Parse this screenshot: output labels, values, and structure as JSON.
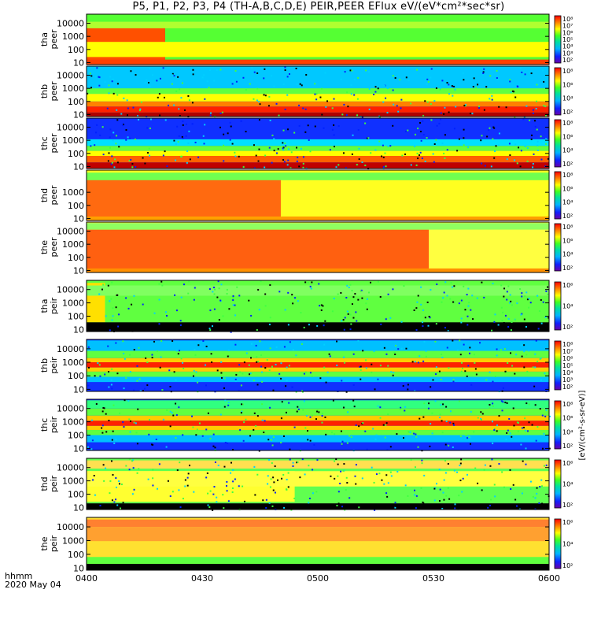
{
  "title": "P5, P1, P2, P3, P4 (TH-A,B,C,D,E) PEIR,PEER EFlux eV/(eV*cm²*sec*sr)",
  "time_axis": {
    "ticks": [
      "0400",
      "0430",
      "0500",
      "0530",
      "0600"
    ],
    "label_line1": "hhmm",
    "label_line2": "2020 May 04"
  },
  "colorbar_label": "eV/(cm²-s-sr-eV)",
  "chart_data": [
    {
      "type": "heatmap",
      "probe": "tha",
      "species": "peer",
      "ylabels": [
        "tha",
        "peer"
      ],
      "y_scale": "log",
      "y_ticks": [
        "10000",
        "1000",
        "100",
        "10"
      ],
      "colorbar_ticks": [
        "10⁸",
        "10⁷",
        "10⁶",
        "10⁵",
        "10⁴",
        "10³",
        "10²"
      ]
    },
    {
      "type": "heatmap",
      "probe": "thb",
      "species": "peer",
      "ylabels": [
        "thb",
        "peer"
      ],
      "y_scale": "log",
      "y_ticks": [
        "10000",
        "1000",
        "100",
        "10"
      ],
      "colorbar_ticks": [
        "10⁸",
        "10⁶",
        "10⁴",
        "10²"
      ]
    },
    {
      "type": "heatmap",
      "probe": "thc",
      "species": "peer",
      "ylabels": [
        "thc",
        "peer"
      ],
      "y_scale": "log",
      "y_ticks": [
        "10000",
        "1000",
        "100",
        "10"
      ],
      "colorbar_ticks": [
        "10⁸",
        "10⁶",
        "10⁴",
        "10²"
      ]
    },
    {
      "type": "heatmap",
      "probe": "thd",
      "species": "peer",
      "ylabels": [
        "thd",
        "peer"
      ],
      "y_scale": "log",
      "y_ticks": [
        "1000",
        "100",
        "10"
      ],
      "colorbar_ticks": [
        "10⁸",
        "10⁶",
        "10⁴",
        "10²"
      ]
    },
    {
      "type": "heatmap",
      "probe": "the",
      "species": "peer",
      "ylabels": [
        "the",
        "peer"
      ],
      "y_scale": "log",
      "y_ticks": [
        "10000",
        "1000",
        "100",
        "10"
      ],
      "colorbar_ticks": [
        "10⁸",
        "10⁶",
        "10⁴",
        "10²"
      ]
    },
    {
      "type": "heatmap",
      "probe": "tha",
      "species": "peir",
      "ylabels": [
        "tha",
        "peir"
      ],
      "y_scale": "log",
      "y_ticks": [
        "10000",
        "1000",
        "100",
        "10"
      ],
      "colorbar_ticks": [
        "10⁶",
        "10⁴",
        "10²"
      ]
    },
    {
      "type": "heatmap",
      "probe": "thb",
      "species": "peir",
      "ylabels": [
        "thb",
        "peir"
      ],
      "y_scale": "log",
      "y_ticks": [
        "10000",
        "1000",
        "100",
        "10"
      ],
      "colorbar_ticks": [
        "10⁸",
        "10⁷",
        "10⁶",
        "10⁵",
        "10⁴",
        "10³",
        "10²"
      ]
    },
    {
      "type": "heatmap",
      "probe": "thc",
      "species": "peir",
      "ylabels": [
        "thc",
        "peir"
      ],
      "y_scale": "log",
      "y_ticks": [
        "10000",
        "1000",
        "100",
        "10"
      ],
      "colorbar_ticks": [
        "10⁸",
        "10⁶",
        "10⁴",
        "10²"
      ]
    },
    {
      "type": "heatmap",
      "probe": "thd",
      "species": "peir",
      "ylabels": [
        "thd",
        "peir"
      ],
      "y_scale": "log",
      "y_ticks": [
        "10000",
        "1000",
        "100",
        "10"
      ],
      "colorbar_ticks": [
        "10⁶",
        "10⁴",
        "10²"
      ]
    },
    {
      "type": "heatmap",
      "probe": "the",
      "species": "peir",
      "ylabels": [
        "the",
        "peir"
      ],
      "y_scale": "log",
      "y_ticks": [
        "10000",
        "1000",
        "100",
        "10"
      ],
      "colorbar_ticks": [
        "10⁶",
        "10⁴",
        "10²"
      ]
    }
  ]
}
